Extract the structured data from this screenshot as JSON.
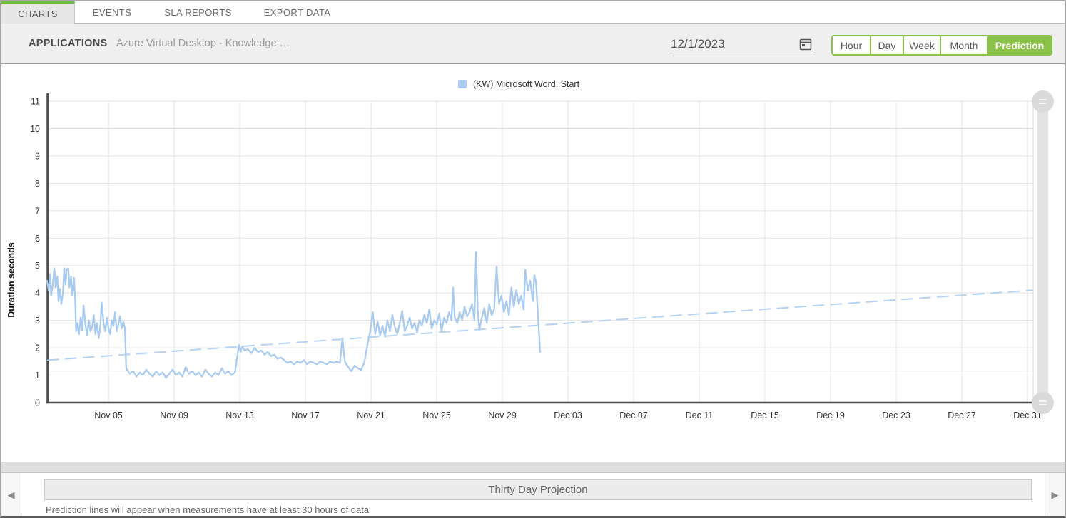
{
  "tabs": [
    {
      "label": "CHARTS",
      "active": true
    },
    {
      "label": "EVENTS",
      "active": false
    },
    {
      "label": "SLA REPORTS",
      "active": false
    },
    {
      "label": "EXPORT DATA",
      "active": false
    }
  ],
  "header": {
    "section_label": "APPLICATIONS",
    "selected_application": "Azure Virtual Desktop - Knowledge …",
    "date_value": "12/1/2023",
    "range_buttons": [
      {
        "label": "Hour",
        "active": false
      },
      {
        "label": "Day",
        "active": false
      },
      {
        "label": "Week",
        "active": false
      },
      {
        "label": "Month",
        "active": false
      },
      {
        "label": "Prediction",
        "active": true
      }
    ]
  },
  "colors": {
    "accent_green": "#8bc34a",
    "tab_indicator": "#6cbf45",
    "series_blue": "#a9cbf0",
    "trend_blue": "#b4d3f3",
    "grid": "#e2e2e2",
    "axis": "#4d4d4d"
  },
  "chart_data": {
    "type": "line",
    "title": "",
    "legend": [
      "(KW) Microsoft Word: Start"
    ],
    "xlabel": "",
    "ylabel": "Duration seconds",
    "ylim": [
      0,
      11
    ],
    "y_ticks": [
      0,
      1,
      2,
      3,
      4,
      5,
      6,
      7,
      8,
      9,
      10,
      11
    ],
    "x_domain": [
      0.3,
      60.35
    ],
    "x_ticks": [
      {
        "day": 4,
        "label": "Nov 05"
      },
      {
        "day": 8,
        "label": "Nov 09"
      },
      {
        "day": 12,
        "label": "Nov 13"
      },
      {
        "day": 16,
        "label": "Nov 17"
      },
      {
        "day": 20,
        "label": "Nov 21"
      },
      {
        "day": 24,
        "label": "Nov 25"
      },
      {
        "day": 28,
        "label": "Nov 29"
      },
      {
        "day": 32,
        "label": "Dec 03"
      },
      {
        "day": 36,
        "label": "Dec 07"
      },
      {
        "day": 40,
        "label": "Dec 11"
      },
      {
        "day": 44,
        "label": "Dec 15"
      },
      {
        "day": 48,
        "label": "Dec 19"
      },
      {
        "day": 52,
        "label": "Dec 23"
      },
      {
        "day": 56,
        "label": "Dec 27"
      },
      {
        "day": 60,
        "label": "Dec 31"
      }
    ],
    "series": [
      {
        "name": "(KW) Microsoft Word: Start",
        "style": "solid",
        "points": [
          [
            0.25,
            4.45
          ],
          [
            0.35,
            4.1
          ],
          [
            0.45,
            4.7
          ],
          [
            0.5,
            3.9
          ],
          [
            0.6,
            4.3
          ],
          [
            0.7,
            4.9
          ],
          [
            0.78,
            4.2
          ],
          [
            0.88,
            4.6
          ],
          [
            0.95,
            3.7
          ],
          [
            1.05,
            4.15
          ],
          [
            1.12,
            3.6
          ],
          [
            1.22,
            4.0
          ],
          [
            1.3,
            4.9
          ],
          [
            1.38,
            4.3
          ],
          [
            1.45,
            4.85
          ],
          [
            1.55,
            4.9
          ],
          [
            1.62,
            4.2
          ],
          [
            1.72,
            4.6
          ],
          [
            1.8,
            3.9
          ],
          [
            1.9,
            4.55
          ],
          [
            1.97,
            3.75
          ],
          [
            2.02,
            2.6
          ],
          [
            2.1,
            2.9
          ],
          [
            2.2,
            2.5
          ],
          [
            2.3,
            3.1
          ],
          [
            2.4,
            2.65
          ],
          [
            2.48,
            3.55
          ],
          [
            2.6,
            2.8
          ],
          [
            2.7,
            2.45
          ],
          [
            2.8,
            3.0
          ],
          [
            2.9,
            2.6
          ],
          [
            3.0,
            2.75
          ],
          [
            3.1,
            3.2
          ],
          [
            3.2,
            2.5
          ],
          [
            3.3,
            2.9
          ],
          [
            3.4,
            2.35
          ],
          [
            3.5,
            2.8
          ],
          [
            3.58,
            3.65
          ],
          [
            3.7,
            2.9
          ],
          [
            3.8,
            2.6
          ],
          [
            3.9,
            3.1
          ],
          [
            4.0,
            2.7
          ],
          [
            4.1,
            2.5
          ],
          [
            4.2,
            3.0
          ],
          [
            4.3,
            2.8
          ],
          [
            4.4,
            3.3
          ],
          [
            4.5,
            2.6
          ],
          [
            4.6,
            2.85
          ],
          [
            4.7,
            3.15
          ],
          [
            4.8,
            2.7
          ],
          [
            4.9,
            2.95
          ],
          [
            5.0,
            2.7
          ],
          [
            5.08,
            1.25
          ],
          [
            5.3,
            1.05
          ],
          [
            5.5,
            1.15
          ],
          [
            5.7,
            0.95
          ],
          [
            5.9,
            1.1
          ],
          [
            6.1,
            1.0
          ],
          [
            6.3,
            1.2
          ],
          [
            6.5,
            1.05
          ],
          [
            6.7,
            0.95
          ],
          [
            6.9,
            1.15
          ],
          [
            7.1,
            1.0
          ],
          [
            7.3,
            1.1
          ],
          [
            7.5,
            0.9
          ],
          [
            7.7,
            1.05
          ],
          [
            7.9,
            1.2
          ],
          [
            8.1,
            1.0
          ],
          [
            8.3,
            1.1
          ],
          [
            8.5,
            0.95
          ],
          [
            8.7,
            1.3
          ],
          [
            8.9,
            1.05
          ],
          [
            9.1,
            1.15
          ],
          [
            9.3,
            1.0
          ],
          [
            9.5,
            1.1
          ],
          [
            9.7,
            0.95
          ],
          [
            9.9,
            1.2
          ],
          [
            10.1,
            1.05
          ],
          [
            10.3,
            0.95
          ],
          [
            10.5,
            1.1
          ],
          [
            10.7,
            1.0
          ],
          [
            10.9,
            1.25
          ],
          [
            11.1,
            1.05
          ],
          [
            11.3,
            1.15
          ],
          [
            11.5,
            1.0
          ],
          [
            11.7,
            1.1
          ],
          [
            11.85,
            1.7
          ],
          [
            11.95,
            2.1
          ],
          [
            12.05,
            1.85
          ],
          [
            12.15,
            2.05
          ],
          [
            12.3,
            1.9
          ],
          [
            12.5,
            1.95
          ],
          [
            12.7,
            1.8
          ],
          [
            12.9,
            2.0
          ],
          [
            13.1,
            1.85
          ],
          [
            13.3,
            1.9
          ],
          [
            13.5,
            1.75
          ],
          [
            13.7,
            1.85
          ],
          [
            13.9,
            1.7
          ],
          [
            14.1,
            1.75
          ],
          [
            14.3,
            1.6
          ],
          [
            14.5,
            1.65
          ],
          [
            14.7,
            1.55
          ],
          [
            14.9,
            1.45
          ],
          [
            15.1,
            1.5
          ],
          [
            15.3,
            1.4
          ],
          [
            15.5,
            1.5
          ],
          [
            15.7,
            1.45
          ],
          [
            15.9,
            1.55
          ],
          [
            16.1,
            1.4
          ],
          [
            16.3,
            1.5
          ],
          [
            16.5,
            1.45
          ],
          [
            16.7,
            1.4
          ],
          [
            16.9,
            1.5
          ],
          [
            17.1,
            1.45
          ],
          [
            17.3,
            1.4
          ],
          [
            17.5,
            1.5
          ],
          [
            17.7,
            1.45
          ],
          [
            17.9,
            1.5
          ],
          [
            18.1,
            1.45
          ],
          [
            18.25,
            2.35
          ],
          [
            18.4,
            1.5
          ],
          [
            18.6,
            1.3
          ],
          [
            18.8,
            1.15
          ],
          [
            19.0,
            1.35
          ],
          [
            19.2,
            1.25
          ],
          [
            19.4,
            1.2
          ],
          [
            19.6,
            1.5
          ],
          [
            19.8,
            2.2
          ],
          [
            19.95,
            2.6
          ],
          [
            20.1,
            3.3
          ],
          [
            20.25,
            2.5
          ],
          [
            20.4,
            2.95
          ],
          [
            20.55,
            2.45
          ],
          [
            20.7,
            2.8
          ],
          [
            20.85,
            2.4
          ],
          [
            21.0,
            3.0
          ],
          [
            21.15,
            2.6
          ],
          [
            21.3,
            3.2
          ],
          [
            21.45,
            2.75
          ],
          [
            21.6,
            2.5
          ],
          [
            21.75,
            2.9
          ],
          [
            21.9,
            3.35
          ],
          [
            22.05,
            2.6
          ],
          [
            22.2,
            2.8
          ],
          [
            22.35,
            3.1
          ],
          [
            22.5,
            2.7
          ],
          [
            22.65,
            2.9
          ],
          [
            22.8,
            2.55
          ],
          [
            22.95,
            3.0
          ],
          [
            23.1,
            2.8
          ],
          [
            23.25,
            3.2
          ],
          [
            23.4,
            2.9
          ],
          [
            23.55,
            3.4
          ],
          [
            23.7,
            2.7
          ],
          [
            23.85,
            3.0
          ],
          [
            24.0,
            2.85
          ],
          [
            24.15,
            3.25
          ],
          [
            24.3,
            2.6
          ],
          [
            24.45,
            3.1
          ],
          [
            24.6,
            2.9
          ],
          [
            24.75,
            3.3
          ],
          [
            24.9,
            3.0
          ],
          [
            25.0,
            4.2
          ],
          [
            25.1,
            3.1
          ],
          [
            25.25,
            2.9
          ],
          [
            25.4,
            3.3
          ],
          [
            25.55,
            3.0
          ],
          [
            25.7,
            3.5
          ],
          [
            25.85,
            3.15
          ],
          [
            26.0,
            3.3
          ],
          [
            26.15,
            3.6
          ],
          [
            26.3,
            3.0
          ],
          [
            26.4,
            5.5
          ],
          [
            26.5,
            3.4
          ],
          [
            26.6,
            2.65
          ],
          [
            26.75,
            3.1
          ],
          [
            26.9,
            3.45
          ],
          [
            27.05,
            2.9
          ],
          [
            27.2,
            3.6
          ],
          [
            27.35,
            3.2
          ],
          [
            27.5,
            3.4
          ],
          [
            27.65,
            4.95
          ],
          [
            27.8,
            3.6
          ],
          [
            27.95,
            3.9
          ],
          [
            28.1,
            3.3
          ],
          [
            28.25,
            3.7
          ],
          [
            28.4,
            3.2
          ],
          [
            28.55,
            4.2
          ],
          [
            28.7,
            3.5
          ],
          [
            28.85,
            4.1
          ],
          [
            29.0,
            3.6
          ],
          [
            29.15,
            3.9
          ],
          [
            29.3,
            3.4
          ],
          [
            29.4,
            4.85
          ],
          [
            29.55,
            4.1
          ],
          [
            29.7,
            4.45
          ],
          [
            29.85,
            3.7
          ],
          [
            29.95,
            4.65
          ],
          [
            30.05,
            4.4
          ],
          [
            30.15,
            3.4
          ],
          [
            30.3,
            1.85
          ]
        ]
      },
      {
        "name": "Thirty Day Projection trend",
        "style": "dashed",
        "points": [
          [
            0.3,
            1.55
          ],
          [
            60.3,
            4.1
          ]
        ]
      }
    ]
  },
  "footer": {
    "projection_label": "Thirty Day Projection",
    "caption": "Prediction lines will appear when measurements have at least 30 hours of data",
    "left_arrow": "◀",
    "right_arrow": "▶"
  }
}
